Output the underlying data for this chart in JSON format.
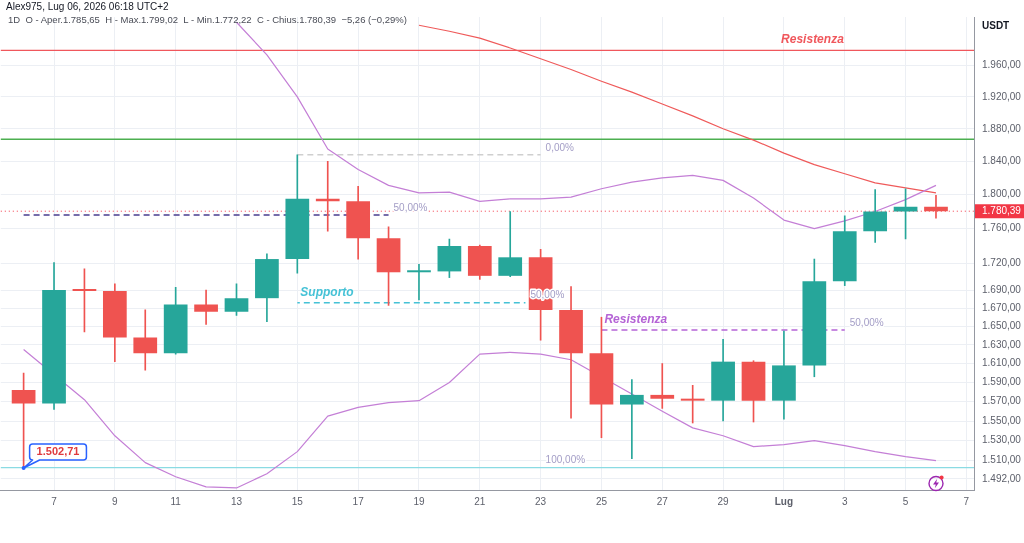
{
  "chart_data": {
    "type": "candlestick",
    "title": "Alex975, Lug 06, 2026 06:18 UTC+2",
    "subtitle": "1D  O - Aper.1.785,65  H - Max.1.799,02  L - Min.1.772,22  C - Chius.1.780,39  −5,26 (−0,29%)",
    "ylabel": "USDT",
    "x": [
      "2026-06-06",
      "2026-06-07",
      "2026-06-08",
      "2026-06-09",
      "2026-06-10",
      "2026-06-11",
      "2026-06-12",
      "2026-06-13",
      "2026-06-14",
      "2026-06-15",
      "2026-06-16",
      "2026-06-17",
      "2026-06-18",
      "2026-06-19",
      "2026-06-20",
      "2026-06-21",
      "2026-06-22",
      "2026-06-23",
      "2026-06-24",
      "2026-06-25",
      "2026-06-26",
      "2026-06-27",
      "2026-06-28",
      "2026-06-29",
      "2026-06-30",
      "2026-07-01",
      "2026-07-02",
      "2026-07-03",
      "2026-07-04",
      "2026-07-05",
      "2026-07-06"
    ],
    "ohlc": [
      [
        1582,
        1600,
        1502.71,
        1568
      ],
      [
        1568,
        1721,
        1562,
        1690
      ],
      [
        1690,
        1714,
        1644,
        1689
      ],
      [
        1689,
        1697,
        1612,
        1638
      ],
      [
        1638,
        1668,
        1603,
        1621
      ],
      [
        1621,
        1693,
        1620,
        1674
      ],
      [
        1674,
        1690,
        1652,
        1666
      ],
      [
        1666,
        1697,
        1662,
        1681
      ],
      [
        1681,
        1731,
        1655,
        1725
      ],
      [
        1725,
        1848,
        1709,
        1795
      ],
      [
        1795,
        1840,
        1757,
        1792
      ],
      [
        1792,
        1810,
        1725,
        1749
      ],
      [
        1749,
        1762,
        1673,
        1710
      ],
      [
        1710,
        1719,
        1679,
        1711
      ],
      [
        1711,
        1748,
        1704,
        1740
      ],
      [
        1740,
        1741,
        1702,
        1706
      ],
      [
        1706,
        1780,
        1705,
        1727
      ],
      [
        1727,
        1736,
        1635,
        1668
      ],
      [
        1668,
        1694,
        1553,
        1621
      ],
      [
        1621,
        1660,
        1533,
        1567
      ],
      [
        1567,
        1593,
        1512,
        1577
      ],
      [
        1577,
        1610,
        1563,
        1573
      ],
      [
        1573,
        1587,
        1548,
        1571
      ],
      [
        1571,
        1636,
        1550,
        1612
      ],
      [
        1612,
        1613,
        1549,
        1571
      ],
      [
        1571,
        1645,
        1552,
        1608
      ],
      [
        1608,
        1725,
        1596,
        1700
      ],
      [
        1700,
        1775,
        1695,
        1757
      ],
      [
        1757,
        1806,
        1744,
        1780
      ],
      [
        1780,
        1807,
        1748,
        1785.65
      ],
      [
        1785.65,
        1799.02,
        1772.22,
        1780.39
      ]
    ],
    "colors": [
      "#ef5350",
      "#26a69a",
      "#ef5350",
      "#ef5350",
      "#ef5350",
      "#26a69a",
      "#ef5350",
      "#26a69a",
      "#26a69a",
      "#26a69a",
      "#ef5350",
      "#ef5350",
      "#ef5350",
      "#26a69a",
      "#26a69a",
      "#ef5350",
      "#26a69a",
      "#ef5350",
      "#ef5350",
      "#ef5350",
      "#26a69a",
      "#ef5350",
      "#ef5350",
      "#26a69a",
      "#ef5350",
      "#26a69a",
      "#26a69a",
      "#26a69a",
      "#26a69a",
      "#26a69a",
      "#ef5350"
    ],
    "value_labels": [
      "1.502,71",
      null,
      null,
      null,
      null,
      null,
      null,
      null,
      null,
      null,
      null,
      null,
      null,
      null,
      null,
      null,
      null,
      null,
      null,
      null,
      null,
      null,
      null,
      null,
      null,
      null,
      null,
      null,
      null,
      null,
      null
    ],
    "series": [
      {
        "type": "line",
        "color": "#c47fd6",
        "values": [
          null,
          null,
          null,
          null,
          null,
          null,
          null,
          2017,
          1974,
          1920,
          1855,
          1830,
          1811,
          1802,
          1803,
          1792,
          1795,
          1795,
          1797,
          1807,
          1815,
          1820,
          1823,
          1817,
          1796,
          1770,
          1760,
          1769,
          1780,
          1794,
          1811
        ]
      },
      {
        "type": "line",
        "color": "#c47fd6",
        "x": [
          "2026-06-06",
          "2026-06-08",
          "2026-06-09",
          "2026-06-10",
          "2026-06-11",
          "2026-06-12",
          "2026-06-13",
          "2026-06-14",
          "2026-06-15",
          "2026-06-16",
          "2026-06-17",
          "2026-06-18",
          "2026-06-19",
          "2026-06-20",
          "2026-06-21",
          "2026-06-22",
          "2026-06-23",
          "2026-06-24",
          "2026-06-26",
          "2026-06-27",
          "2026-06-28",
          "2026-06-29",
          "2026-06-30",
          "2026-07-01",
          "2026-07-02",
          "2026-07-03",
          "2026-07-04",
          "2026-07-05",
          "2026-07-06"
        ],
        "values": [
          1625,
          1572,
          1535,
          1508,
          1494,
          1484,
          1483,
          1497,
          1519,
          1555,
          1564,
          1569,
          1571,
          1590,
          1620,
          1622,
          1620,
          1614,
          1578,
          1560,
          1543,
          1535,
          1524,
          1526,
          1530,
          1525,
          1519,
          1514,
          1510
        ]
      },
      {
        "type": "line",
        "color": "#ef5a5a",
        "values": [
          null,
          null,
          null,
          null,
          null,
          null,
          null,
          null,
          null,
          null,
          null,
          null,
          null,
          2013,
          2005,
          1996,
          1983,
          1969,
          1955,
          1940,
          1926,
          1911,
          1896,
          1880,
          1866,
          1850,
          1836,
          1825,
          1814,
          1808,
          1802
        ]
      },
      {
        "type": "line",
        "x": [
          "2026-06-06",
          "2026-06-18"
        ],
        "values": [
          1776,
          1776
        ],
        "color": "#4a3e8e",
        "line_style": "dashed"
      },
      {
        "type": "line",
        "x": [
          "2026-06-15",
          "2026-06-23"
        ],
        "values": [
          1848,
          1848
        ],
        "color": "#cfcfcf",
        "line_style": "dashed"
      },
      {
        "type": "line",
        "name": "Supporto",
        "x": [
          "2026-06-15",
          "2026-06-22T12:00"
        ],
        "values": [
          1676,
          1676
        ],
        "color": "#45c2d6",
        "line_style": "dashed"
      },
      {
        "type": "line",
        "name": "Resistenza",
        "x": [
          "2026-06-25",
          "2026-07-03"
        ],
        "values": [
          1646,
          1646
        ],
        "color": "#b564d6",
        "line_style": "dashed"
      }
    ],
    "xlim": [
      "2026-06-05T06:00",
      "2026-07-07T06:00"
    ],
    "xticks": [
      {
        "value": "2026-06-07",
        "label": "7"
      },
      {
        "value": "2026-06-09",
        "label": "9"
      },
      {
        "value": "2026-06-11",
        "label": "11"
      },
      {
        "value": "2026-06-13",
        "label": "13"
      },
      {
        "value": "2026-06-15",
        "label": "15"
      },
      {
        "value": "2026-06-17",
        "label": "17"
      },
      {
        "value": "2026-06-19",
        "label": "19"
      },
      {
        "value": "2026-06-21",
        "label": "21"
      },
      {
        "value": "2026-06-23",
        "label": "23"
      },
      {
        "value": "2026-06-25",
        "label": "25"
      },
      {
        "value": "2026-06-27",
        "label": "27"
      },
      {
        "value": "2026-06-29",
        "label": "29"
      },
      {
        "value": "2026-07-01",
        "label": "Lug"
      },
      {
        "value": "2026-07-03",
        "label": "3"
      },
      {
        "value": "2026-07-05",
        "label": "5"
      },
      {
        "value": "2026-07-07",
        "label": "7"
      }
    ],
    "ylim": [
      1481,
      2024
    ],
    "yticks": [
      {
        "value": 1960,
        "label": "1.960,00"
      },
      {
        "value": 1920,
        "label": "1.920,00"
      },
      {
        "value": 1880,
        "label": "1.880,00"
      },
      {
        "value": 1840,
        "label": "1.840,00"
      },
      {
        "value": 1800,
        "label": "1.800,00"
      },
      {
        "value": 1760,
        "label": "1.760,00"
      },
      {
        "value": 1720,
        "label": "1.720,00"
      },
      {
        "value": 1690,
        "label": "1.690,00"
      },
      {
        "value": 1670,
        "label": "1.670,00"
      },
      {
        "value": 1650,
        "label": "1.650,00"
      },
      {
        "value": 1630,
        "label": "1.630,00"
      },
      {
        "value": 1610,
        "label": "1.610,00"
      },
      {
        "value": 1590,
        "label": "1.590,00"
      },
      {
        "value": 1570,
        "label": "1.570,00"
      },
      {
        "value": 1550,
        "label": "1.550,00"
      },
      {
        "value": 1530,
        "label": "1.530,00"
      },
      {
        "value": 1510,
        "label": "1.510,00"
      },
      {
        "value": 1492,
        "label": "1.492,00"
      }
    ],
    "log": true,
    "grid": true,
    "marker": "none",
    "ref_lines": [
      {
        "axis": "y",
        "value": 1980,
        "label": "Resistenza",
        "color": "#f0575c"
      },
      {
        "axis": "y",
        "value": 1867,
        "color": "#4caf50"
      },
      {
        "axis": "y",
        "value": 1503,
        "color": "#8adbe3"
      },
      {
        "axis": "y",
        "value": 1780.39,
        "label": "1.780,39",
        "color": "#f23645",
        "line_style": "dotted"
      }
    ],
    "annotations": [
      {
        "text": "50,00%",
        "x": "2026-06-18",
        "y": 1776
      },
      {
        "text": "0,00%",
        "x": "2026-06-23",
        "y": 1848
      },
      {
        "text": "50,00%",
        "x": "2026-06-22T12:00",
        "y": 1676
      },
      {
        "text": "50,00%",
        "x": "2026-07-03",
        "y": 1646
      },
      {
        "text": "100,00%",
        "x": "2026-06-23",
        "y": 1503
      }
    ]
  }
}
